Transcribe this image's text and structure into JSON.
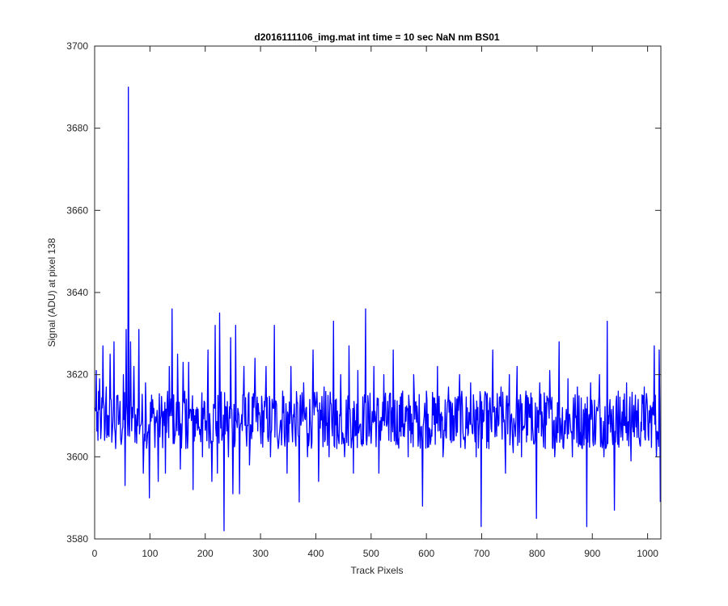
{
  "chart_data": {
    "type": "line",
    "title": "d2016111106_img.mat int time = 10 sec  NaN nm BS01",
    "xlabel": "Track Pixels",
    "ylabel": "Signal (ADU) at pixel 138",
    "xlim": [
      0,
      1024
    ],
    "ylim": [
      3580,
      3700
    ],
    "xticks": [
      0,
      100,
      200,
      300,
      400,
      500,
      600,
      700,
      800,
      900,
      1000
    ],
    "yticks": [
      3580,
      3600,
      3620,
      3640,
      3660,
      3680,
      3700
    ],
    "grid": false,
    "series": [
      {
        "color": "#0000ff",
        "anchor_points": [
          [
            1,
            3612
          ],
          [
            3,
            3621
          ],
          [
            6,
            3604
          ],
          [
            9,
            3619
          ],
          [
            12,
            3607
          ],
          [
            15,
            3627
          ],
          [
            18,
            3604
          ],
          [
            21,
            3617
          ],
          [
            25,
            3610
          ],
          [
            28,
            3625
          ],
          [
            32,
            3606
          ],
          [
            35,
            3628
          ],
          [
            38,
            3602
          ],
          [
            42,
            3615
          ],
          [
            45,
            3611
          ],
          [
            48,
            3603
          ],
          [
            52,
            3620
          ],
          [
            55,
            3593
          ],
          [
            57,
            3631
          ],
          [
            59,
            3610
          ],
          [
            61,
            3690
          ],
          [
            63,
            3605
          ],
          [
            65,
            3628
          ],
          [
            68,
            3612
          ],
          [
            71,
            3622
          ],
          [
            75,
            3608
          ],
          [
            80,
            3631
          ],
          [
            85,
            3609
          ],
          [
            88,
            3596
          ],
          [
            92,
            3618
          ],
          [
            95,
            3604
          ],
          [
            99,
            3590
          ],
          [
            103,
            3615
          ],
          [
            108,
            3608
          ],
          [
            115,
            3594
          ],
          [
            120,
            3610
          ],
          [
            128,
            3596
          ],
          [
            135,
            3622
          ],
          [
            140,
            3636
          ],
          [
            145,
            3605
          ],
          [
            150,
            3625
          ],
          [
            155,
            3597
          ],
          [
            160,
            3623
          ],
          [
            165,
            3602
          ],
          [
            170,
            3623
          ],
          [
            178,
            3592
          ],
          [
            185,
            3612
          ],
          [
            195,
            3600
          ],
          [
            205,
            3626
          ],
          [
            212,
            3594
          ],
          [
            218,
            3632
          ],
          [
            222,
            3596
          ],
          [
            226,
            3635
          ],
          [
            230,
            3604
          ],
          [
            234,
            3582
          ],
          [
            238,
            3612
          ],
          [
            242,
            3600
          ],
          [
            246,
            3629
          ],
          [
            250,
            3591
          ],
          [
            255,
            3632
          ],
          [
            262,
            3591
          ],
          [
            270,
            3622
          ],
          [
            280,
            3598
          ],
          [
            290,
            3624
          ],
          [
            300,
            3606
          ],
          [
            310,
            3622
          ],
          [
            318,
            3600
          ],
          [
            325,
            3632
          ],
          [
            332,
            3602
          ],
          [
            340,
            3616
          ],
          [
            348,
            3596
          ],
          [
            355,
            3622
          ],
          [
            363,
            3604
          ],
          [
            370,
            3589
          ],
          [
            378,
            3618
          ],
          [
            385,
            3600
          ],
          [
            395,
            3626
          ],
          [
            405,
            3594
          ],
          [
            415,
            3617
          ],
          [
            424,
            3600
          ],
          [
            432,
            3633
          ],
          [
            438,
            3602
          ],
          [
            445,
            3620
          ],
          [
            452,
            3600
          ],
          [
            460,
            3627
          ],
          [
            468,
            3596
          ],
          [
            476,
            3621
          ],
          [
            483,
            3604
          ],
          [
            490,
            3636
          ],
          [
            496,
            3605
          ],
          [
            505,
            3622
          ],
          [
            514,
            3596
          ],
          [
            523,
            3620
          ],
          [
            532,
            3604
          ],
          [
            540,
            3626
          ],
          [
            548,
            3603
          ],
          [
            557,
            3616
          ],
          [
            567,
            3600
          ],
          [
            577,
            3620
          ],
          [
            586,
            3606
          ],
          [
            593,
            3588
          ],
          [
            600,
            3616
          ],
          [
            610,
            3605
          ],
          [
            620,
            3622
          ],
          [
            630,
            3600
          ],
          [
            640,
            3617
          ],
          [
            650,
            3604
          ],
          [
            660,
            3620
          ],
          [
            670,
            3602
          ],
          [
            680,
            3618
          ],
          [
            690,
            3600
          ],
          [
            699,
            3583
          ],
          [
            705,
            3614
          ],
          [
            713,
            3602
          ],
          [
            720,
            3626
          ],
          [
            727,
            3605
          ],
          [
            735,
            3617
          ],
          [
            743,
            3596
          ],
          [
            750,
            3620
          ],
          [
            757,
            3601
          ],
          [
            764,
            3622
          ],
          [
            772,
            3600
          ],
          [
            780,
            3616
          ],
          [
            790,
            3604
          ],
          [
            799,
            3585
          ],
          [
            805,
            3618
          ],
          [
            815,
            3602
          ],
          [
            823,
            3621
          ],
          [
            832,
            3600
          ],
          [
            840,
            3628
          ],
          [
            848,
            3602
          ],
          [
            856,
            3619
          ],
          [
            864,
            3600
          ],
          [
            873,
            3617
          ],
          [
            882,
            3602
          ],
          [
            890,
            3583
          ],
          [
            897,
            3618
          ],
          [
            905,
            3603
          ],
          [
            913,
            3620
          ],
          [
            921,
            3600
          ],
          [
            927,
            3633
          ],
          [
            933,
            3606
          ],
          [
            940,
            3587
          ],
          [
            947,
            3616
          ],
          [
            955,
            3604
          ],
          [
            962,
            3618
          ],
          [
            970,
            3599
          ],
          [
            978,
            3615
          ],
          [
            986,
            3603
          ],
          [
            994,
            3617
          ],
          [
            1002,
            3604
          ],
          [
            1008,
            3612
          ],
          [
            1012,
            3627
          ],
          [
            1016,
            3600
          ],
          [
            1019,
            3606
          ],
          [
            1021,
            3626
          ],
          [
            1023,
            3589
          ]
        ]
      }
    ]
  }
}
